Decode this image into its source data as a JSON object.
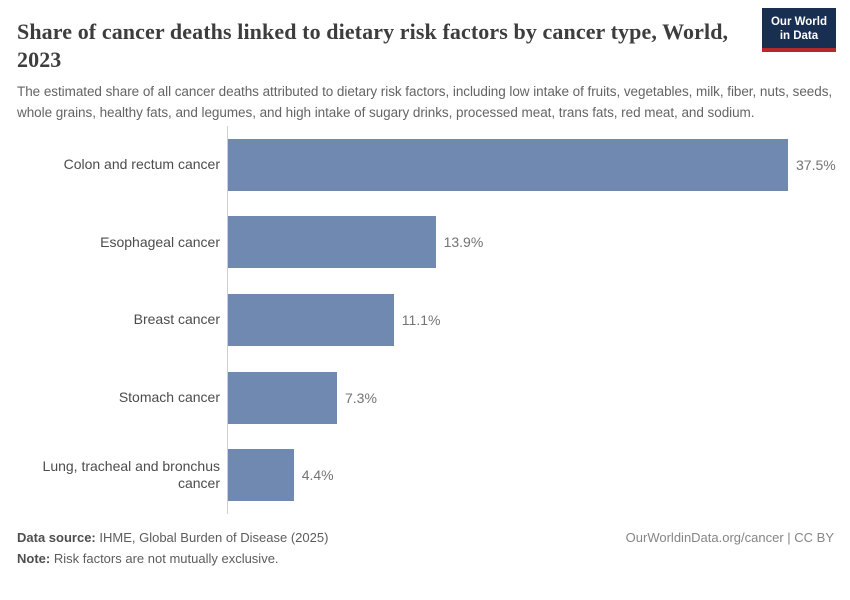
{
  "header": {
    "title": "Share of cancer deaths linked to dietary risk factors by cancer type, World, 2023",
    "subtitle": "The estimated share of all cancer deaths attributed to dietary risk factors, including low intake of fruits, vegetables, milk, fiber, nuts, seeds, whole grains, healthy fats, and legumes, and high intake of sugary drinks, processed meat, trans fats, red meat, and sodium.",
    "logo": {
      "line1": "Our World",
      "line2": "in Data",
      "background_color": "#182f51",
      "stripe_color": "#b5282b",
      "text_color": "#ffffff"
    }
  },
  "chart_data": {
    "type": "bar",
    "orientation": "horizontal",
    "title": "Share of cancer deaths linked to dietary risk factors by cancer type, World, 2023",
    "categories": [
      "Colon and rectum cancer",
      "Esophageal cancer",
      "Breast cancer",
      "Stomach cancer",
      "Lung, tracheal and bronchus cancer"
    ],
    "values": [
      37.5,
      13.9,
      11.1,
      7.3,
      4.4
    ],
    "value_labels": [
      "37.5%",
      "13.9%",
      "11.1%",
      "7.3%",
      "4.4%"
    ],
    "unit": "%",
    "xlim": [
      0,
      37.5
    ],
    "grid": false,
    "legend": "none",
    "bar_color": "#7089b0",
    "axis_line_color": "#cfcfcf",
    "category_label_color": "#4c4c4c",
    "value_label_color": "#737373"
  },
  "footer": {
    "data_source_label": "Data source:",
    "data_source": "IHME, Global Burden of Disease (2025)",
    "note_label": "Note:",
    "note": "Risk factors are not mutually exclusive.",
    "license": "OurWorldinData.org/cancer | CC BY"
  }
}
